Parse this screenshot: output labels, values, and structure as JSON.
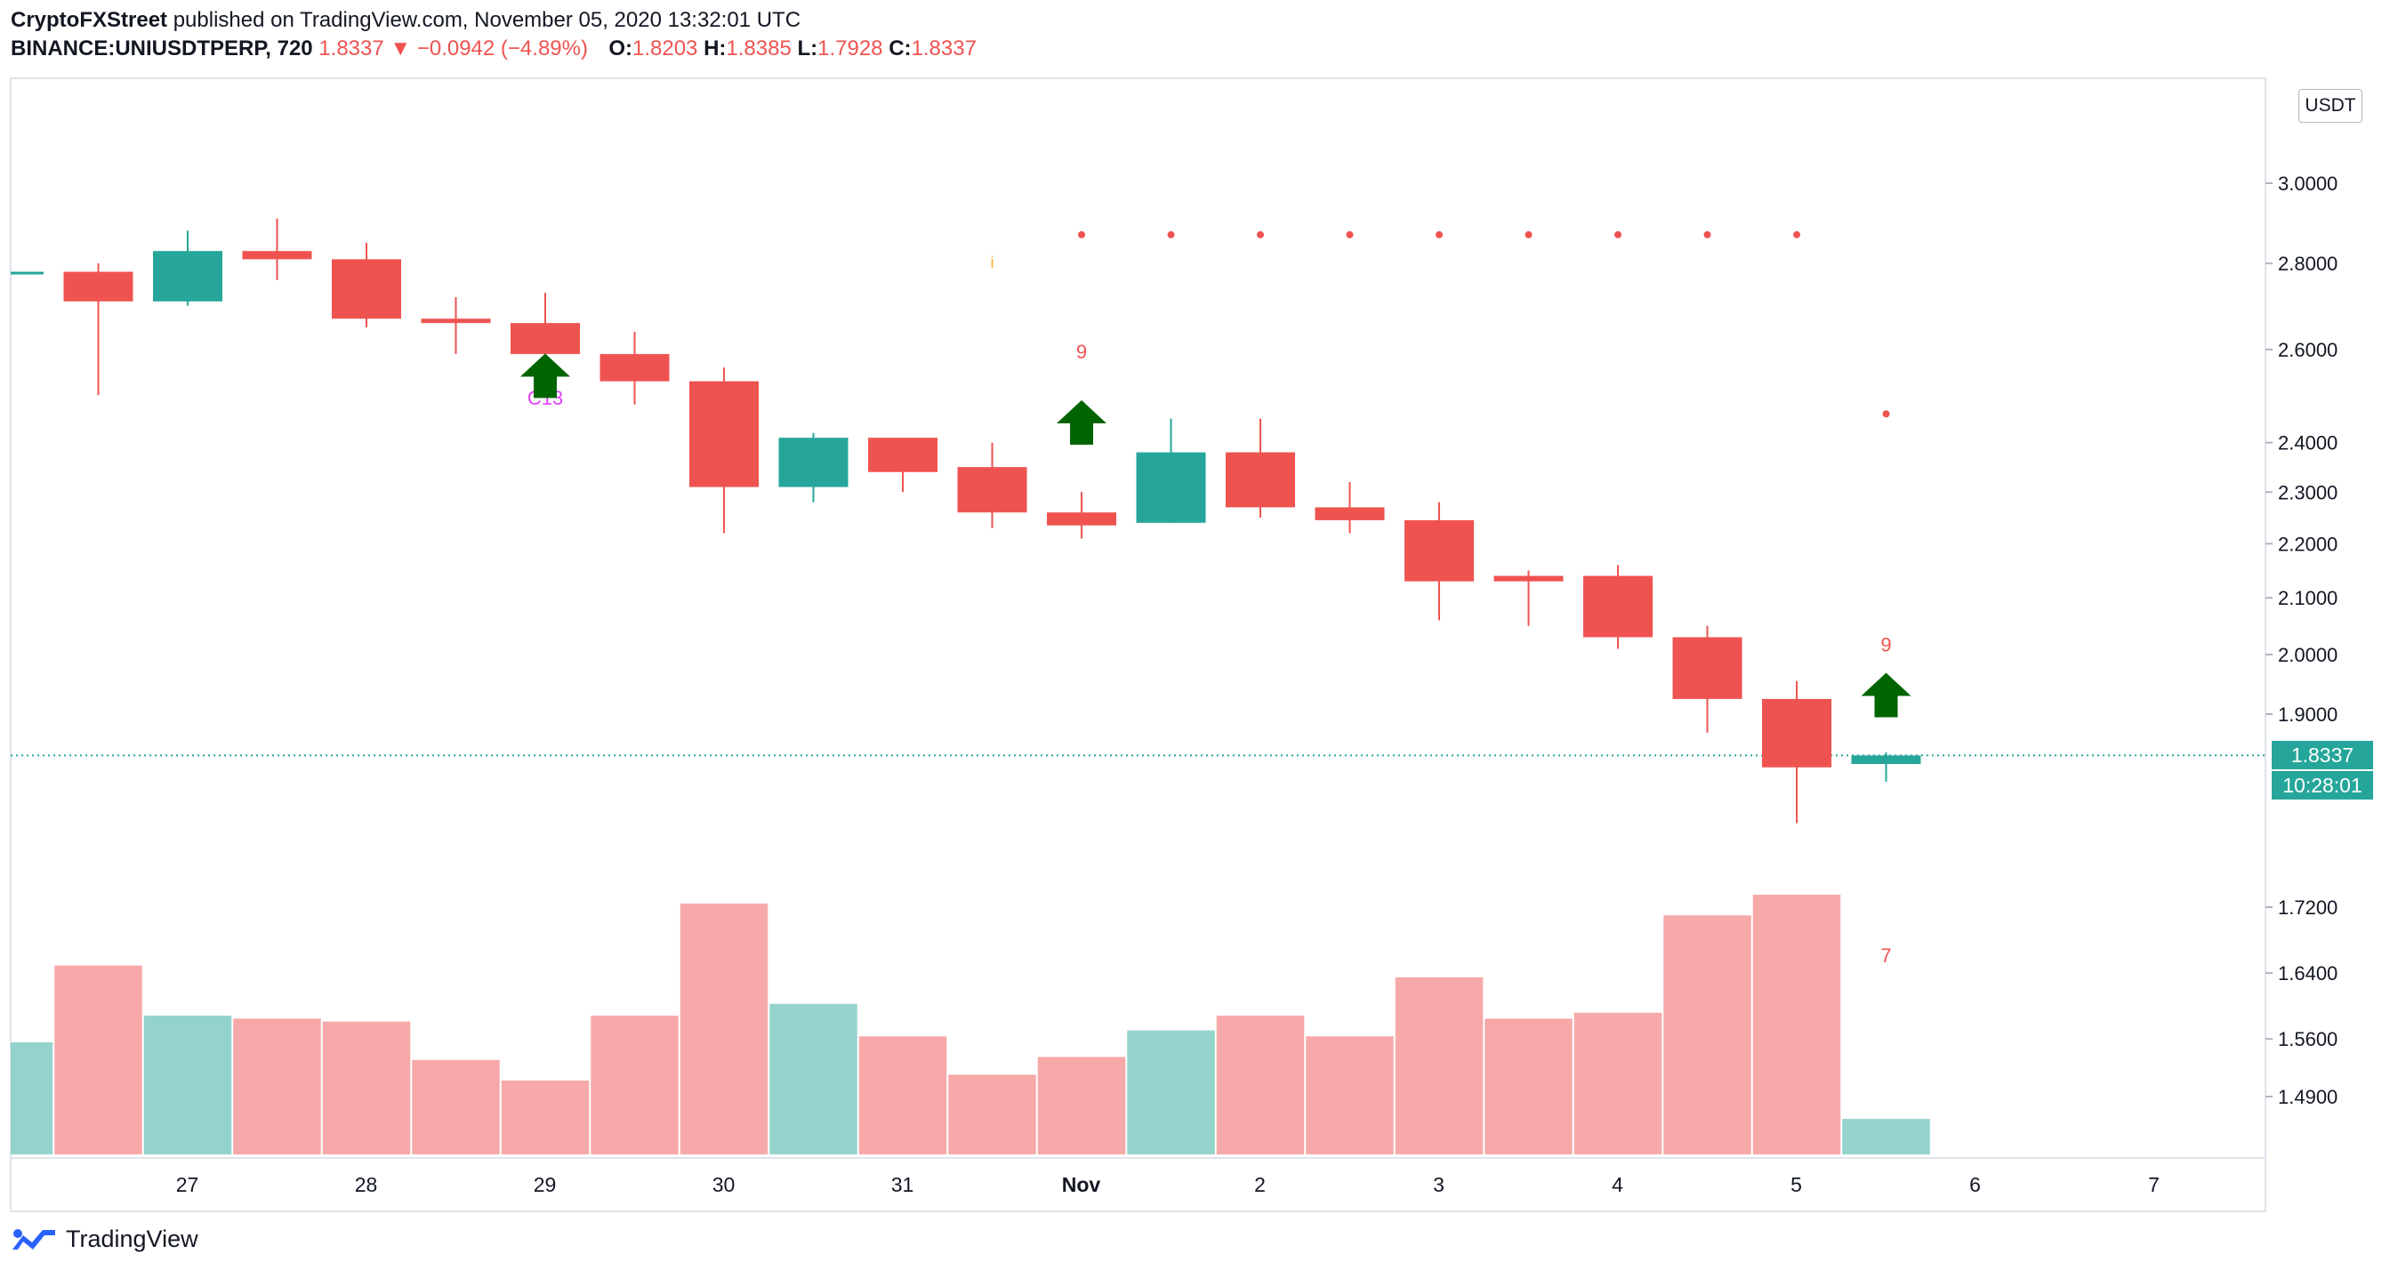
{
  "header": {
    "publisher": "CryptoFXStreet",
    "published_text": "published on TradingView.com, November 05, 2020 13:32:01 UTC",
    "symbol": "BINANCE:UNIUSDTPERP, 720",
    "last": "1.8337",
    "change": "−0.0942 (−4.89%)",
    "o_label": "O:",
    "o_value": "1.8203",
    "h_label": "H:",
    "h_value": "1.8385",
    "l_label": "L:",
    "l_value": "1.7928",
    "c_label": "C:",
    "c_value": "1.8337"
  },
  "axis": {
    "currency": "USDT",
    "price_ticks": [
      "3.0000",
      "2.8000",
      "2.6000",
      "2.4000",
      "2.3000",
      "2.2000",
      "2.1000",
      "2.0000",
      "1.9000",
      "1.7200",
      "1.6400",
      "1.5600",
      "1.4900"
    ],
    "last_price_label": "1.8337",
    "countdown_label": "10:28:01",
    "time_ticks": [
      "27",
      "28",
      "29",
      "30",
      "31",
      "Nov",
      "2",
      "3",
      "4",
      "5",
      "6",
      "7"
    ]
  },
  "footer": {
    "brand": "TradingView"
  },
  "colors": {
    "up": "#26a69a",
    "down": "#ef5350",
    "vol_up": "#94d3cc",
    "vol_down": "#f6a9a8",
    "arrow": "#006400",
    "c13": "#e040fb",
    "setup": "#f9a825"
  },
  "chart_data": {
    "type": "candlestick",
    "symbol": "UNIUSDTPERP",
    "interval": "720",
    "price_scale": "log",
    "ylim": [
      1.42,
      3.3
    ],
    "candles": [
      {
        "x": "26 12:00",
        "open": 2.78,
        "high": 2.78,
        "low": 2.78,
        "close": 2.78,
        "volume": 0.38
      },
      {
        "x": "27 00:00",
        "open": 2.78,
        "high": 2.8,
        "low": 2.5,
        "close": 2.71,
        "volume": 0.64
      },
      {
        "x": "27 12:00",
        "open": 2.71,
        "high": 2.88,
        "low": 2.7,
        "close": 2.83,
        "volume": 0.47
      },
      {
        "x": "28 00:00",
        "open": 2.83,
        "high": 2.91,
        "low": 2.76,
        "close": 2.81,
        "volume": 0.46
      },
      {
        "x": "28 12:00",
        "open": 2.81,
        "high": 2.85,
        "low": 2.65,
        "close": 2.67,
        "volume": 0.45
      },
      {
        "x": "29 00:00",
        "open": 2.67,
        "high": 2.72,
        "low": 2.59,
        "close": 2.66,
        "volume": 0.32
      },
      {
        "x": "29 12:00",
        "open": 2.66,
        "high": 2.73,
        "low": 2.59,
        "close": 2.59,
        "volume": 0.25
      },
      {
        "x": "30 00:00",
        "open": 2.59,
        "high": 2.64,
        "low": 2.48,
        "close": 2.53,
        "volume": 0.47
      },
      {
        "x": "30 12:00",
        "open": 2.53,
        "high": 2.56,
        "low": 2.22,
        "close": 2.31,
        "volume": 0.85
      },
      {
        "x": "31 00:00",
        "open": 2.31,
        "high": 2.42,
        "low": 2.28,
        "close": 2.41,
        "volume": 0.51
      },
      {
        "x": "31 12:00",
        "open": 2.41,
        "high": 2.41,
        "low": 2.3,
        "close": 2.34,
        "volume": 0.4
      },
      {
        "x": "Nov 1 00:00",
        "open": 2.35,
        "high": 2.4,
        "low": 2.23,
        "close": 2.26,
        "volume": 0.27
      },
      {
        "x": "Nov 1 12:00",
        "open": 2.26,
        "high": 2.3,
        "low": 2.21,
        "close": 2.235,
        "volume": 0.33
      },
      {
        "x": "2 00:00",
        "open": 2.24,
        "high": 2.45,
        "low": 2.24,
        "close": 2.38,
        "volume": 0.42
      },
      {
        "x": "2 12:00",
        "open": 2.38,
        "high": 2.45,
        "low": 2.25,
        "close": 2.27,
        "volume": 0.47
      },
      {
        "x": "3 00:00",
        "open": 2.27,
        "high": 2.32,
        "low": 2.22,
        "close": 2.245,
        "volume": 0.4
      },
      {
        "x": "3 12:00",
        "open": 2.245,
        "high": 2.28,
        "low": 2.06,
        "close": 2.13,
        "volume": 0.6
      },
      {
        "x": "4 00:00",
        "open": 2.14,
        "high": 2.15,
        "low": 2.05,
        "close": 2.13,
        "volume": 0.46
      },
      {
        "x": "4 12:00",
        "open": 2.14,
        "high": 2.16,
        "low": 2.01,
        "close": 2.03,
        "volume": 0.48
      },
      {
        "x": "5 00:00",
        "open": 2.03,
        "high": 2.05,
        "low": 1.87,
        "close": 1.925,
        "volume": 0.81
      },
      {
        "x": "5 12:00",
        "open": 1.925,
        "high": 1.955,
        "low": 1.73,
        "close": 1.815,
        "volume": 0.88
      },
      {
        "x": "6 00:00",
        "open": 1.8203,
        "high": 1.8385,
        "low": 1.7928,
        "close": 1.8337,
        "volume": 0.12
      }
    ],
    "markers": [
      {
        "type": "text",
        "x": "29 12:00",
        "price": 2.48,
        "text": "C13"
      },
      {
        "type": "arrow-up",
        "x": "29 12:00",
        "price": 2.54
      },
      {
        "type": "text",
        "x": "Nov 1 00:00",
        "price": 2.79,
        "text": "i"
      },
      {
        "type": "text",
        "x": "Nov 1 12:00",
        "price": 2.58,
        "text": "9"
      },
      {
        "type": "arrow-up",
        "x": "Nov 1 12:00",
        "price": 2.44
      },
      {
        "type": "text",
        "x": "6 00:00",
        "price": 2.005,
        "text": "9"
      },
      {
        "type": "arrow-up",
        "x": "6 00:00",
        "price": 1.93
      },
      {
        "type": "text",
        "x": "6 00:00",
        "price": 1.535,
        "text": "7"
      }
    ],
    "resistance_dots": {
      "price": 2.87,
      "from": "Nov 1 12:00",
      "to": "5 12:00"
    },
    "single_dot": {
      "x": "6 00:00",
      "price": 2.46
    }
  }
}
